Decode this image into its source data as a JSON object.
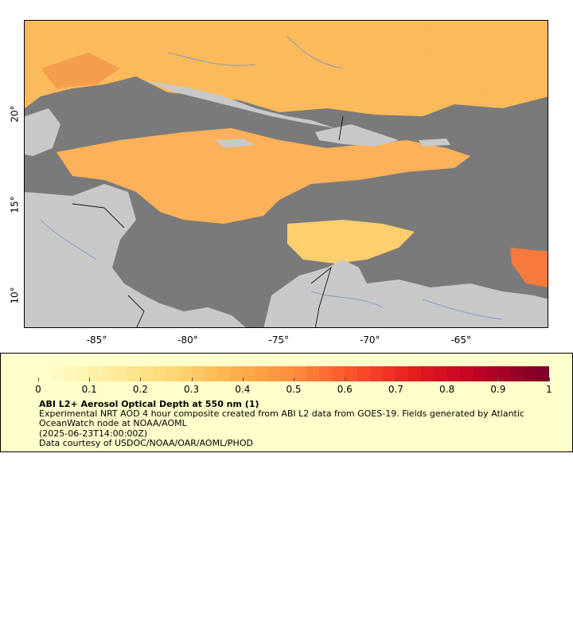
{
  "map": {
    "x_ticks": [
      {
        "value": -85,
        "label": "-85°"
      },
      {
        "value": -80,
        "label": "-80°"
      },
      {
        "value": -75,
        "label": "-75°"
      },
      {
        "value": -70,
        "label": "-70°"
      },
      {
        "value": -65,
        "label": "-65°"
      }
    ],
    "y_ticks": [
      {
        "value": 20,
        "label": "20°"
      },
      {
        "value": 15,
        "label": "15°"
      },
      {
        "value": 10,
        "label": "10°"
      }
    ],
    "lon_range": [
      -89,
      -60.2
    ],
    "lat_range": [
      8.2,
      25.2
    ],
    "colors": {
      "no_data": "#7a7a7a",
      "land": "#c8c8c8",
      "rivers": "#6f95c8",
      "borders": "#111111"
    }
  },
  "legend": {
    "colorbar_labels": [
      "0",
      "0.1",
      "0.2",
      "0.3",
      "0.4",
      "0.5",
      "0.6",
      "0.7",
      "0.8",
      "0.9",
      "1"
    ],
    "colorbar_range": [
      0,
      1
    ],
    "colormap": "YlOrRd",
    "title": "ABI L2+ Aerosol Optical Depth at 550 nm (1)",
    "description": "Experimental NRT AOD 4 hour composite created from ABI L2 data from GOES-19. Fields generated by Atlantic OceanWatch node at NOAA/AOML",
    "timestamp": "(2025-06-23T14:00:00Z)",
    "credit": "Data courtesy of USDOC/NOAA/OAR/AOML/PHOD"
  }
}
